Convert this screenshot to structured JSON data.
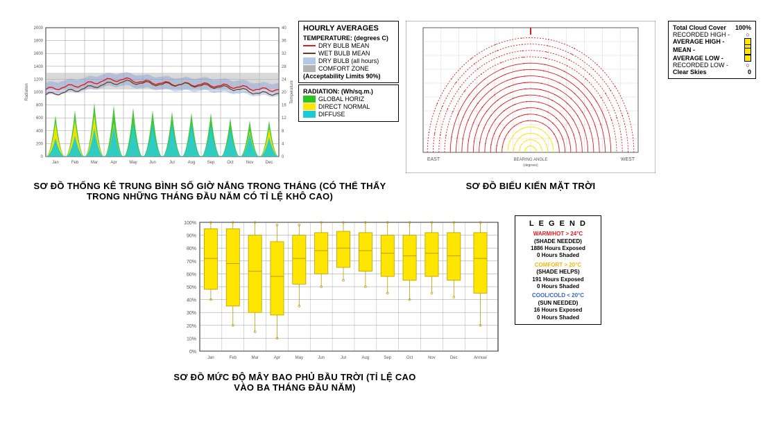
{
  "captions": {
    "hourly": "SƠ ĐỒ THỐNG KÊ TRUNG BÌNH SỐ GIỜ NẮNG TRONG THÁNG (CÓ THỂ THẤY TRONG NHỮNG THÁNG ĐẦU NĂM CÓ TỈ LỆ KHÔ CAO)",
    "sunpath": "SƠ ĐỒ BIỂU KIẾN MẶT TRỜI",
    "cloud": "SƠ ĐỒ MỨC ĐỘ MÂY BAO PHỦ BẦU TRỜI (TỈ LỆ CAO VÀO BA THÁNG ĐẦU NĂM)"
  },
  "months": [
    "Jan",
    "Feb",
    "Mar",
    "Apr",
    "May",
    "Jun",
    "Jul",
    "Aug",
    "Sep",
    "Oct",
    "Nov",
    "Dec"
  ],
  "hourlyChart": {
    "title": "HOURLY AVERAGES",
    "tempHeader": "TEMPERATURE: (degrees C)",
    "radHeader": "RADIATION: (Wh/sq.m.)",
    "leftAxisLabel": "Radiation",
    "rightAxisLabel": "Temperature",
    "leftTicks": [
      0,
      200,
      400,
      600,
      800,
      1000,
      1200,
      1400,
      1600,
      1800,
      2000
    ],
    "rightTicks": [
      0,
      4,
      8,
      12,
      16,
      20,
      24,
      28,
      32,
      36,
      40
    ],
    "ylimLeft": [
      0,
      2000
    ],
    "ylimRight": [
      0,
      40
    ],
    "comfortZone": 0.52,
    "comfortZoneHeight": 0.13,
    "dryBulb": [
      0.52,
      0.54,
      0.56,
      0.59,
      0.6,
      0.58,
      0.57,
      0.56,
      0.56,
      0.55,
      0.54,
      0.52
    ],
    "wetBulb": [
      0.48,
      0.5,
      0.53,
      0.56,
      0.58,
      0.57,
      0.56,
      0.56,
      0.55,
      0.54,
      0.52,
      0.49
    ],
    "dryBulbRange": 0.05,
    "globalHoriz": [
      0.32,
      0.36,
      0.42,
      0.4,
      0.38,
      0.36,
      0.35,
      0.34,
      0.34,
      0.3,
      0.28,
      0.28
    ],
    "directNormal": [
      0.26,
      0.28,
      0.32,
      0.26,
      0.24,
      0.22,
      0.22,
      0.22,
      0.22,
      0.2,
      0.2,
      0.22
    ],
    "diffuse": [
      0.14,
      0.16,
      0.22,
      0.24,
      0.26,
      0.26,
      0.26,
      0.26,
      0.25,
      0.22,
      0.18,
      0.15
    ],
    "colors": {
      "globalHoriz": "#2ec122",
      "directNormal": "#ffe600",
      "diffuse": "#1cc9d6",
      "dryBulbMean": "#e31a1c",
      "wetBulbMean": "#6a3b18",
      "dryBulbAll": "#6a8fd4",
      "comfortZone": "#b3b3b3",
      "grid": "#7a7a7a",
      "border": "#000000",
      "bg": "#ffffff"
    },
    "legend": {
      "dryBulbMean": "DRY BULB MEAN",
      "wetBulbMean": "WET BULB MEAN",
      "dryBulbAll": "DRY BULB (all hours)",
      "comfortZone": "COMFORT ZONE",
      "acceptability": "(Acceptability Limits 90%)",
      "globalHoriz": "GLOBAL HORIZ",
      "directNormal": "DIRECT NORMAL",
      "diffuse": "DIFFUSE"
    }
  },
  "sunpath": {
    "xlabel": "BEARING ANGLE",
    "xsublabel": "(degrees)",
    "eastLabel": "EAST",
    "westLabel": "WEST",
    "colors": {
      "hot": "#e31a1c",
      "comfort": "#ffe600",
      "cool": "#3366cc",
      "grid": "#bbbbbb",
      "border": "#000"
    },
    "arcs": [
      5,
      10,
      15,
      20,
      25,
      30,
      35,
      40,
      45,
      50,
      55,
      60,
      65,
      70,
      75,
      80,
      85,
      90
    ]
  },
  "cloudLegend": {
    "title": "Total Cloud Cover",
    "pct": "100%",
    "recHigh": "RECORDED HIGH -",
    "avgHigh": "AVERAGE HIGH -",
    "mean": "MEAN -",
    "avgLow": "AVERAGE LOW -",
    "recLow": "RECORDED LOW -",
    "clear": "Clear Skies",
    "clearVal": "0",
    "colors": {
      "box": "#ffe600",
      "mark": "#000"
    }
  },
  "cloudChart": {
    "ylim": [
      0,
      100
    ],
    "yticks": [
      0,
      10,
      20,
      30,
      40,
      50,
      60,
      70,
      80,
      90,
      100
    ],
    "ytickLabels": [
      "0%",
      "10%",
      "20%",
      "30%",
      "40%",
      "50%",
      "60%",
      "70%",
      "80%",
      "90%",
      "100%"
    ],
    "annualLabel": "Annual",
    "boxes": [
      {
        "low": 40,
        "q1": 48,
        "median": 72,
        "q3": 95,
        "high": 100
      },
      {
        "low": 20,
        "q1": 35,
        "median": 68,
        "q3": 95,
        "high": 100
      },
      {
        "low": 15,
        "q1": 30,
        "median": 62,
        "q3": 90,
        "high": 100
      },
      {
        "low": 10,
        "q1": 28,
        "median": 58,
        "q3": 85,
        "high": 98
      },
      {
        "low": 35,
        "q1": 52,
        "median": 72,
        "q3": 90,
        "high": 98
      },
      {
        "low": 50,
        "q1": 60,
        "median": 78,
        "q3": 92,
        "high": 100
      },
      {
        "low": 55,
        "q1": 65,
        "median": 80,
        "q3": 93,
        "high": 100
      },
      {
        "low": 50,
        "q1": 62,
        "median": 78,
        "q3": 92,
        "high": 100
      },
      {
        "low": 45,
        "q1": 58,
        "median": 76,
        "q3": 90,
        "high": 100
      },
      {
        "low": 40,
        "q1": 55,
        "median": 74,
        "q3": 90,
        "high": 100
      },
      {
        "low": 45,
        "q1": 58,
        "median": 76,
        "q3": 92,
        "high": 100
      },
      {
        "low": 42,
        "q1": 55,
        "median": 74,
        "q3": 92,
        "high": 100
      }
    ],
    "annual": {
      "low": 20,
      "q1": 45,
      "median": 72,
      "q3": 92,
      "high": 100
    },
    "colors": {
      "box": "#ffe600",
      "border": "#b89c00",
      "grid": "#7a7a7a",
      "bg": "#ffffff",
      "frame": "#000"
    }
  },
  "shadeLegend": {
    "title": "L E G E N D",
    "warm": "WARM/HOT  >  24°C",
    "warmNote": "(SHADE NEEDED)",
    "warmExp": "1886 Hours Exposed",
    "warmSh": "0 Hours Shaded",
    "comfort": "COMFORT  >  20°C",
    "comfortNote": "(SHADE HELPS)",
    "comfortExp": "191 Hours Exposed",
    "comfortSh": "0 Hours Shaded",
    "cool": "COOL/COLD  <  20°C",
    "coolNote": "(SUN NEEDED)",
    "coolExp": "16 Hours Exposed",
    "coolSh": "0 Hours Shaded",
    "colors": {
      "warm": "#e31a1c",
      "comfort": "#ffb400",
      "cool": "#3366cc"
    }
  }
}
